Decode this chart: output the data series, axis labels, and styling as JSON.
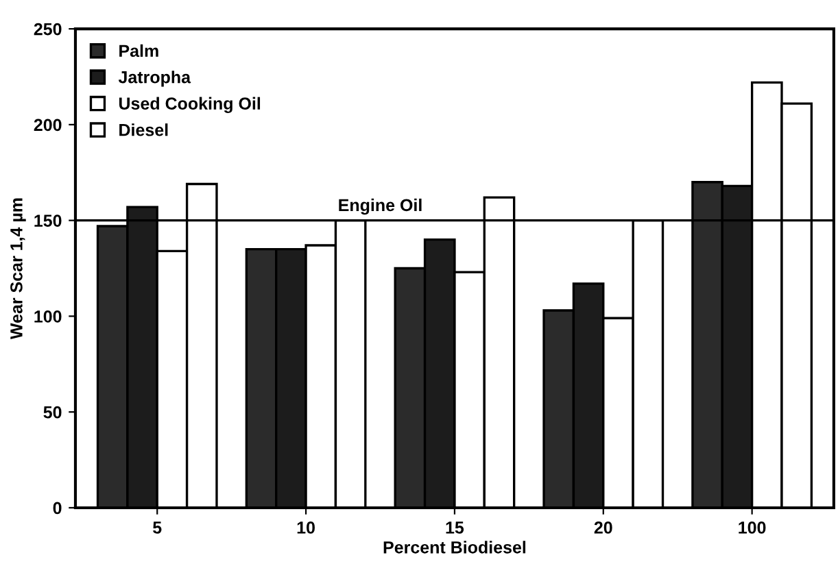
{
  "chart_data": {
    "type": "bar",
    "xlabel": "Percent Biodiesel",
    "ylabel": "Wear Scar 1,4 µm",
    "categories": [
      "5",
      "10",
      "15",
      "20",
      "100"
    ],
    "series": [
      {
        "name": "Palm",
        "color": "#2b2b2b",
        "values": [
          147,
          135,
          125,
          103,
          170
        ]
      },
      {
        "name": "Jatropha",
        "color": "#1c1c1c",
        "values": [
          157,
          135,
          140,
          117,
          168
        ]
      },
      {
        "name": "Used Cooking Oil",
        "color": "#ffffff",
        "values": [
          134,
          137,
          123,
          99,
          222
        ]
      },
      {
        "name": "Diesel",
        "color": "#ffffff",
        "values": [
          169,
          150,
          162,
          150,
          211
        ]
      }
    ],
    "ylim": [
      0,
      250
    ],
    "yticks": [
      0,
      50,
      100,
      150,
      200,
      250
    ],
    "ref_lines": [
      {
        "axis": "y",
        "value": 150,
        "label": "Engine Oil",
        "color": "#000000"
      }
    ],
    "grid": false,
    "legend": "top left"
  }
}
